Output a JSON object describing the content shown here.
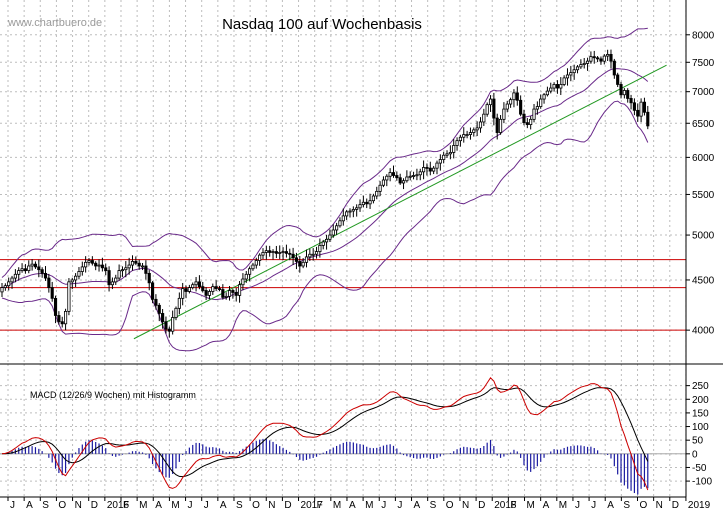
{
  "watermark": "www.chartbuero.de",
  "chart_data": [
    {
      "type": "candlestick",
      "title": "Nasdaq 100 auf Wochenbasis",
      "xlabel": "",
      "ylabel": "",
      "scale": "log",
      "ylim": [
        3800,
        8400
      ],
      "yticks": [
        4000,
        4500,
        5000,
        5500,
        6000,
        6500,
        7000,
        7500,
        8000
      ],
      "x_labels": [
        "J",
        "A",
        "S",
        "O",
        "N",
        "D",
        "2016",
        "F",
        "M",
        "A",
        "M",
        "J",
        "J",
        "A",
        "S",
        "O",
        "N",
        "D",
        "2017",
        "F",
        "M",
        "A",
        "M",
        "J",
        "J",
        "A",
        "S",
        "O",
        "N",
        "D",
        "2018",
        "F",
        "M",
        "A",
        "M",
        "J",
        "J",
        "A",
        "S",
        "O",
        "N",
        "D",
        "2019"
      ],
      "x_label_index": [
        0,
        1,
        2,
        3,
        4,
        5,
        6,
        7,
        8,
        9,
        10,
        11,
        12,
        13,
        14,
        15,
        16,
        17,
        18,
        19,
        20,
        21,
        22,
        23,
        24,
        25,
        26,
        27,
        28,
        29,
        30,
        31,
        32,
        33,
        34,
        35,
        36,
        37,
        38,
        39,
        40,
        41,
        42
      ],
      "horizontal_lines": [
        4000,
        4420,
        4720
      ],
      "trendline": {
        "from": {
          "month": 7.8,
          "value": 3920
        },
        "to": {
          "month": 40.8,
          "value": 7450
        }
      },
      "overlays": [
        "Bollinger-Bänder",
        "Gleitender Durchschnitt"
      ],
      "colors": {
        "candle": "#000000",
        "bands": "#6a2a8a",
        "sma": "#6a2a8a",
        "trend": "#229922",
        "hline": "#cc0000",
        "grid": "#bdbdbd"
      },
      "closes": [
        4420,
        4440,
        4480,
        4520,
        4560,
        4600,
        4620,
        4600,
        4650,
        4670,
        4640,
        4610,
        4570,
        4520,
        4420,
        4310,
        4140,
        4080,
        4060,
        4180,
        4480,
        4500,
        4540,
        4590,
        4640,
        4690,
        4710,
        4680,
        4650,
        4660,
        4630,
        4600,
        4450,
        4480,
        4520,
        4600,
        4610,
        4630,
        4660,
        4700,
        4680,
        4650,
        4650,
        4570,
        4470,
        4300,
        4240,
        4160,
        4080,
        4010,
        3990,
        4120,
        4210,
        4310,
        4410,
        4380,
        4420,
        4450,
        4480,
        4430,
        4390,
        4340,
        4380,
        4430,
        4410,
        4400,
        4320,
        4330,
        4390,
        4370,
        4340,
        4450,
        4510,
        4560,
        4620,
        4660,
        4710,
        4770,
        4800,
        4820,
        4800,
        4810,
        4790,
        4800,
        4810,
        4790,
        4780,
        4740,
        4700,
        4650,
        4690,
        4750,
        4780,
        4780,
        4810,
        4880,
        4920,
        4950,
        5000,
        5060,
        5110,
        5170,
        5230,
        5280,
        5290,
        5310,
        5330,
        5370,
        5400,
        5380,
        5420,
        5480,
        5540,
        5620,
        5690,
        5740,
        5790,
        5750,
        5720,
        5650,
        5680,
        5730,
        5740,
        5750,
        5760,
        5800,
        5860,
        5850,
        5810,
        5850,
        5920,
        5970,
        6030,
        6050,
        6070,
        6170,
        6240,
        6290,
        6330,
        6330,
        6360,
        6400,
        6430,
        6520,
        6640,
        6790,
        6880,
        6580,
        6360,
        6560,
        6720,
        6800,
        6870,
        6980,
        6860,
        6640,
        6510,
        6480,
        6560,
        6720,
        6760,
        6880,
        6950,
        7010,
        7060,
        7120,
        7060,
        7120,
        7230,
        7280,
        7320,
        7370,
        7420,
        7460,
        7480,
        7520,
        7600,
        7580,
        7560,
        7520,
        7610,
        7640,
        7520,
        7280,
        7120,
        6950,
        7020,
        6890,
        6820,
        6700,
        6610,
        6830,
        6670,
        6460
      ],
      "ma_period": 20,
      "band_sigma": 2
    },
    {
      "type": "line",
      "title": "MACD (12/26/9 Wochen) mit Histogramm",
      "ylim": [
        -140,
        300
      ],
      "yticks": [
        -100,
        -50,
        0,
        50,
        100,
        150,
        200,
        250
      ],
      "series": [
        {
          "name": "MACD",
          "color": "#cc0000"
        },
        {
          "name": "Signal",
          "color": "#000000"
        },
        {
          "name": "Histogramm",
          "color": "#1a1aa0"
        }
      ]
    }
  ]
}
